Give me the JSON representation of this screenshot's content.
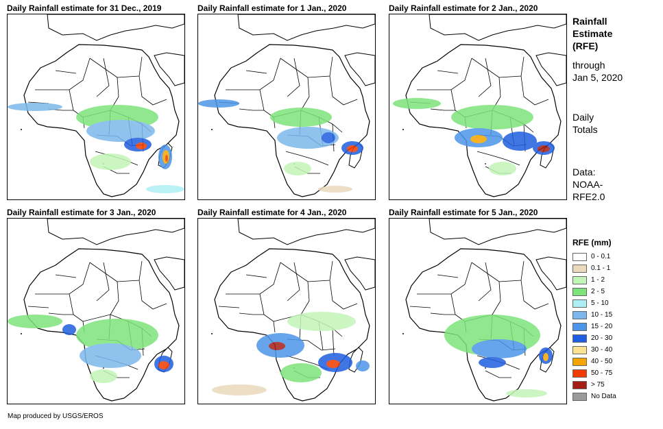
{
  "panels": [
    {
      "title": "Daily Rainfall estimate for 31 Dec., 2019"
    },
    {
      "title": "Daily Rainfall estimate for 1 Jan., 2020"
    },
    {
      "title": "Daily Rainfall estimate for 2 Jan., 2020"
    },
    {
      "title": "Daily Rainfall estimate for 3 Jan., 2020"
    },
    {
      "title": "Daily Rainfall estimate for 4 Jan., 2020"
    },
    {
      "title": "Daily Rainfall estimate for 5 Jan., 2020"
    }
  ],
  "sidebar": {
    "title_line1": "Rainfall",
    "title_line2": "Estimate",
    "title_line3": "(RFE)",
    "through_line1": "through",
    "through_line2": "Jan 5, 2020",
    "totals_line1": "Daily",
    "totals_line2": "Totals",
    "data_line1": "Data:",
    "data_line2": "NOAA-",
    "data_line3": "RFE2.0"
  },
  "legend": {
    "title": "RFE (mm)",
    "items": [
      {
        "label": "0 - 0.1",
        "color": "#ffffff"
      },
      {
        "label": "0.1 - 1",
        "color": "#ead9bd"
      },
      {
        "label": "1 - 2",
        "color": "#c3f5b8"
      },
      {
        "label": "2 - 5",
        "color": "#7de37a"
      },
      {
        "label": "5 - 10",
        "color": "#aeeef5"
      },
      {
        "label": "10 - 15",
        "color": "#7db8ec"
      },
      {
        "label": "15 - 20",
        "color": "#4c95e8"
      },
      {
        "label": "20 - 30",
        "color": "#1f5ee0"
      },
      {
        "label": "30 - 40",
        "color": "#fbe391"
      },
      {
        "label": "40 - 50",
        "color": "#f5a500"
      },
      {
        "label": "50 - 75",
        "color": "#f03c00"
      },
      {
        "label": "> 75",
        "color": "#a51e16"
      },
      {
        "label": "No Data",
        "color": "#9a9a9a"
      }
    ]
  },
  "credit": "Map produced by USGS/EROS"
}
